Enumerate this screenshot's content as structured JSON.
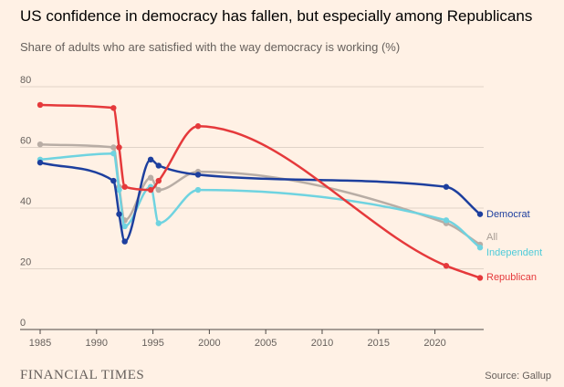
{
  "chart_data": {
    "type": "line",
    "title": "US confidence in democracy has fallen, but especially among Republicans",
    "subtitle": "Share of adults who are satisfied with the way democracy is working (%)",
    "xlim": [
      1985,
      2024
    ],
    "ylim": [
      0,
      80
    ],
    "x_ticks": [
      1985,
      1990,
      1995,
      2000,
      2005,
      2010,
      2015,
      2020
    ],
    "y_ticks": [
      0,
      20,
      40,
      60,
      80
    ],
    "grid": true,
    "series": [
      {
        "name": "Democrat",
        "color": "#1d3f9e",
        "points": [
          [
            1985,
            55
          ],
          [
            1991.5,
            49
          ],
          [
            1992,
            38
          ],
          [
            1992.5,
            29
          ],
          [
            1994.8,
            56
          ],
          [
            1995.5,
            54
          ],
          [
            1999,
            51
          ],
          [
            2021,
            47
          ],
          [
            2024,
            38
          ]
        ]
      },
      {
        "name": "All",
        "color": "#b8ada5",
        "points": [
          [
            1985,
            61
          ],
          [
            1991.5,
            60
          ],
          [
            1992,
            47
          ],
          [
            1992.5,
            36
          ],
          [
            1994.8,
            50
          ],
          [
            1995.5,
            46
          ],
          [
            1999,
            52
          ],
          [
            2021,
            35
          ],
          [
            2024,
            28
          ]
        ]
      },
      {
        "name": "Independent",
        "color": "#6fd3e0",
        "points": [
          [
            1985,
            56
          ],
          [
            1991.5,
            58
          ],
          [
            1992,
            46
          ],
          [
            1992.5,
            34
          ],
          [
            1994.8,
            47
          ],
          [
            1995.5,
            35
          ],
          [
            1999,
            46
          ],
          [
            2021,
            36
          ],
          [
            2024,
            27
          ]
        ]
      },
      {
        "name": "Republican",
        "color": "#e5393b",
        "points": [
          [
            1985,
            74
          ],
          [
            1991.5,
            73
          ],
          [
            1992,
            60
          ],
          [
            1992.5,
            47
          ],
          [
            1994.8,
            46
          ],
          [
            1995.5,
            49
          ],
          [
            1999,
            67
          ],
          [
            2021,
            21
          ],
          [
            2024,
            17
          ]
        ]
      }
    ]
  },
  "footer": {
    "brand": "FINANCIAL TIMES",
    "source": "Source: Gallup"
  }
}
